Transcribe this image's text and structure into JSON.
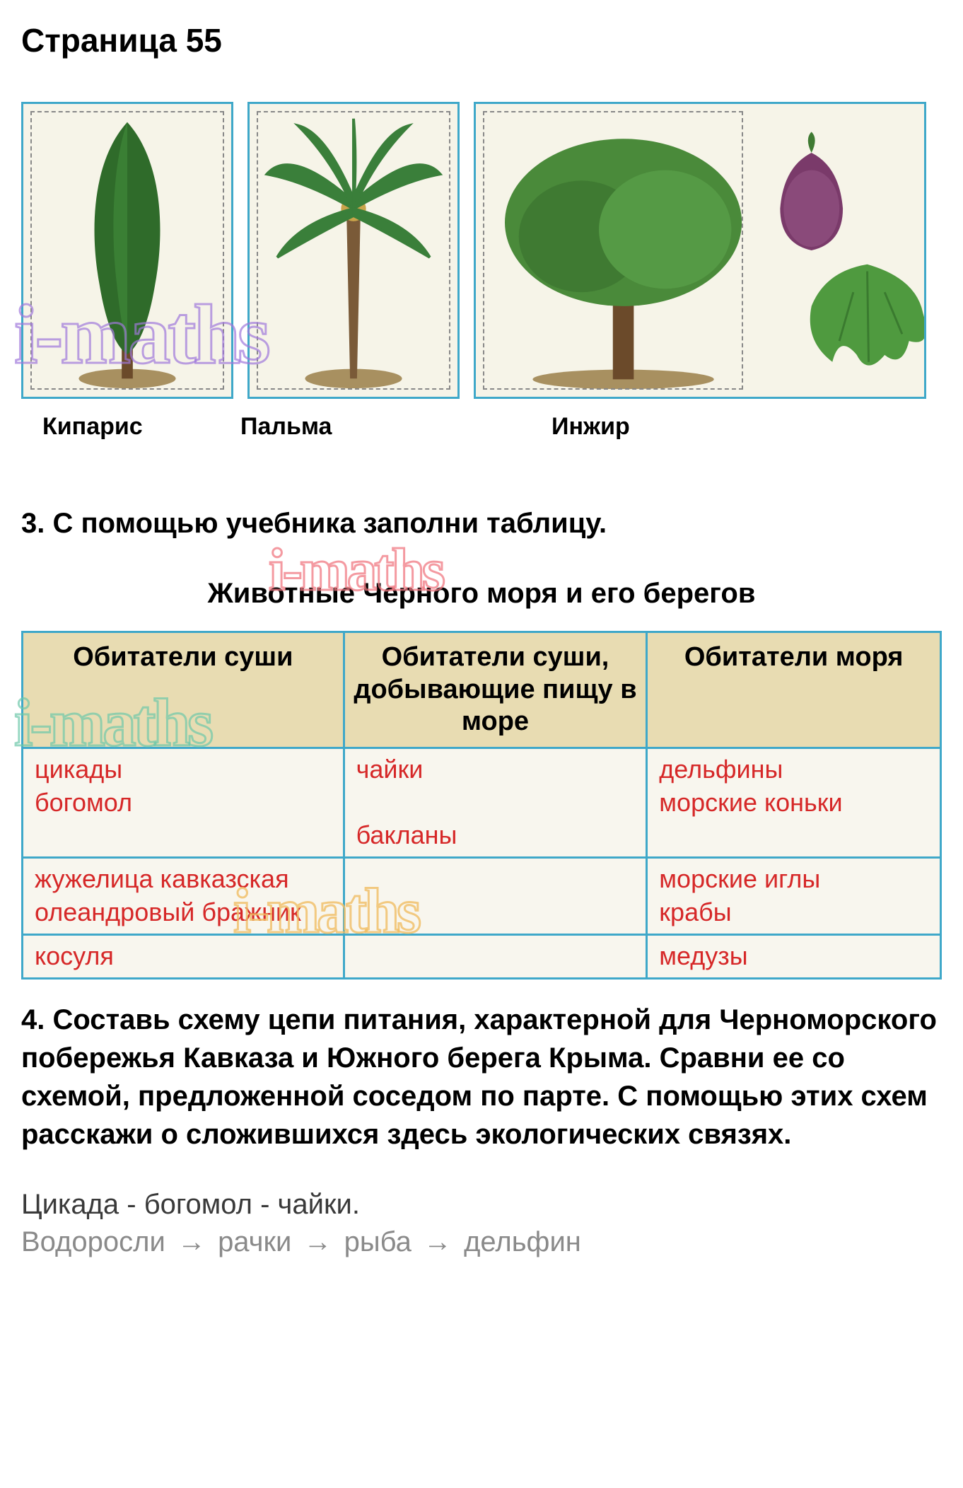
{
  "page_title": "Страница 55",
  "plants": {
    "items": [
      {
        "label": "Кипарис"
      },
      {
        "label": "Пальма"
      },
      {
        "label": "Инжир"
      }
    ],
    "colors": {
      "card_border": "#3fa8c9",
      "card_bg": "#f6f4e8",
      "dashed_border": "#888888",
      "cypress_fill": "#2f6b2a",
      "cypress_trunk": "#6b4a2a",
      "palm_leaf": "#3a7f3a",
      "palm_trunk": "#7a5a38",
      "fig_canopy": "#4a8a3a",
      "fig_trunk": "#6b4a2a",
      "fig_fruit": "#7a3a6a",
      "fig_leaf": "#4f9a3f",
      "ground": "#a89060"
    }
  },
  "question3": "3. С помощью учебника заполни таблицу.",
  "table_title": "Животные Черного моря и его берегов",
  "table": {
    "header_bg": "#e8dcb2",
    "cell_bg": "#f8f6ee",
    "border_color": "#3fa8c9",
    "text_color": "#d62828",
    "headers": [
      "Обитатели суши",
      "Обитатели суши, добывающие пищу в море",
      "Обитатели моря"
    ],
    "rows": [
      [
        "цикады\nбогомол",
        "чайки\n\nбакланы",
        "дельфины\nморские коньки"
      ],
      [
        "жужелица кавказская\nолеандровый бражник",
        "",
        "морские иглы\nкрабы"
      ],
      [
        "косуля",
        "",
        "медузы"
      ]
    ]
  },
  "question4": "4. Составь схему цепи питания, характерной для Черноморского побережья Кавказа и Южного берега Крыма. Сравни ее со схемой, предложенной соседом по парте. С помощью этих схем расскажи о сложившихся здесь экологических связях.",
  "chain1": "Цикада - богомол - чайки.",
  "chain2_parts": [
    "Водоросли",
    "рачки",
    "рыба",
    "дельфин"
  ],
  "watermark_text": "i-maths",
  "watermark_colors": {
    "purple": "rgba(160,120,220,0.7)",
    "pink": "rgba(240,120,130,0.75)",
    "green": "rgba(110,200,170,0.7)",
    "orange": "rgba(240,190,100,0.8)"
  }
}
